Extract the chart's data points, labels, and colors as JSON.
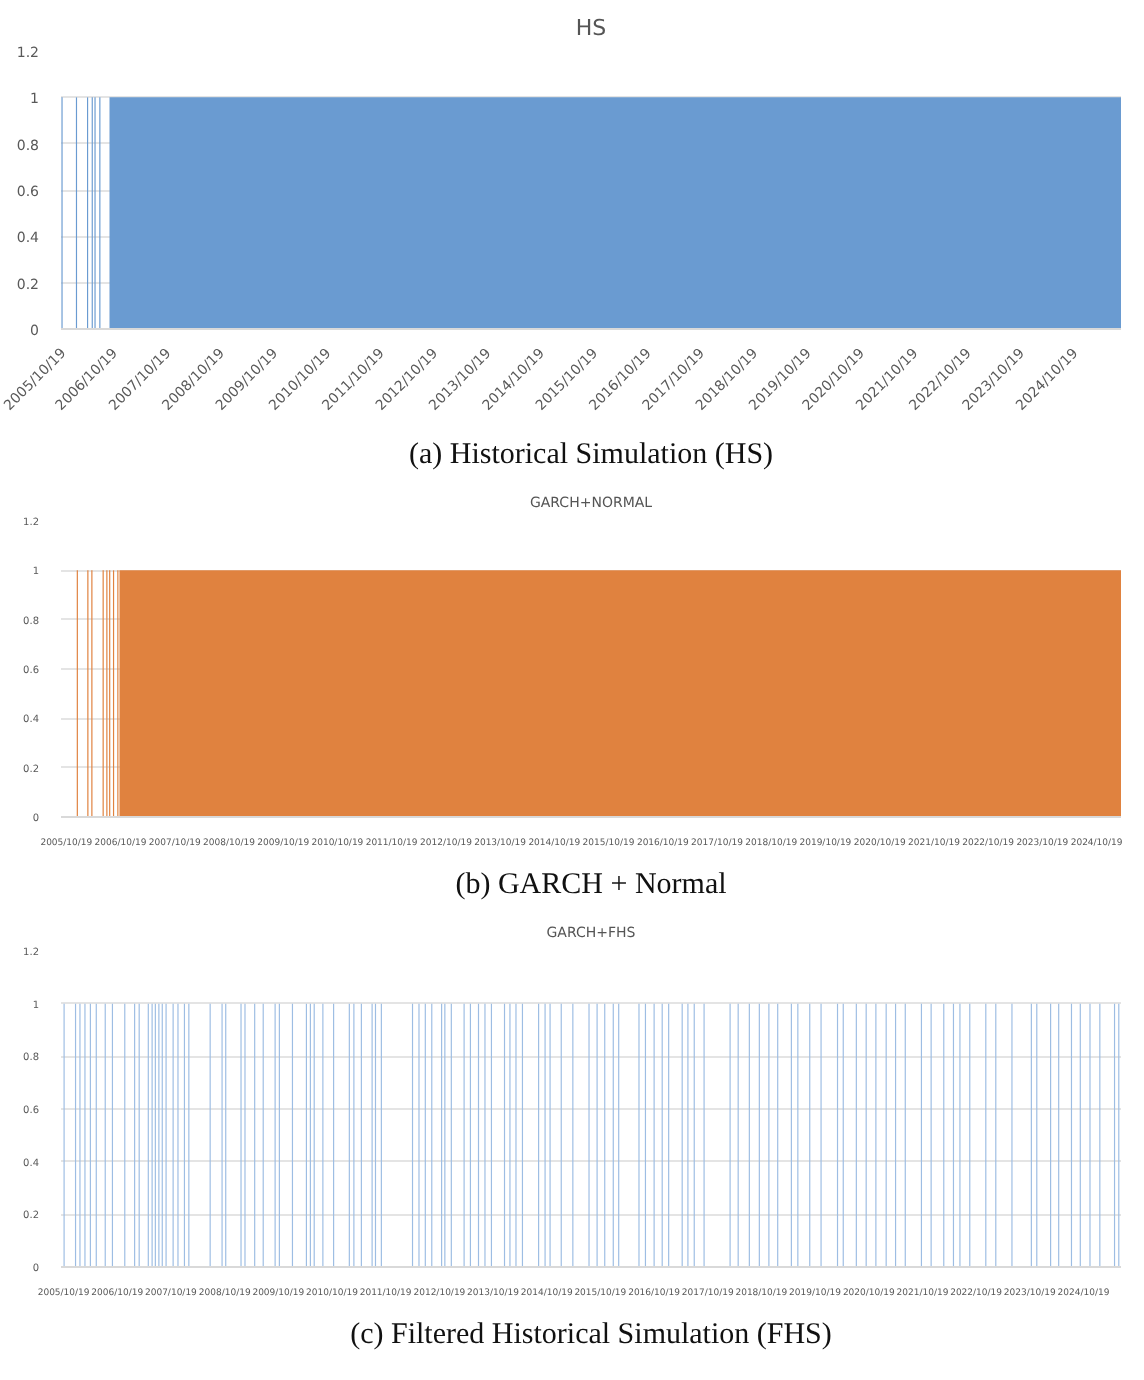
{
  "chart_data": [
    {
      "type": "bar",
      "title": "HS",
      "annotations": [
        "(a) Historical Simulation (HS)"
      ],
      "xlim": [
        "2005-10-12",
        "2025-08-25"
      ],
      "ylim": [
        0,
        1.2
      ],
      "xticks": [
        {
          "value": "2005-10-19",
          "label": "2005/10/19"
        },
        {
          "value": "2006-10-19",
          "label": "2006/10/19"
        },
        {
          "value": "2007-10-19",
          "label": "2007/10/19"
        },
        {
          "value": "2008-10-19",
          "label": "2008/10/19"
        },
        {
          "value": "2009-10-19",
          "label": "2009/10/19"
        },
        {
          "value": "2010-10-19",
          "label": "2010/10/19"
        },
        {
          "value": "2011-10-19",
          "label": "2011/10/19"
        },
        {
          "value": "2012-10-19",
          "label": "2012/10/19"
        },
        {
          "value": "2013-10-19",
          "label": "2013/10/19"
        },
        {
          "value": "2014-10-19",
          "label": "2014/10/19"
        },
        {
          "value": "2015-10-19",
          "label": "2015/10/19"
        },
        {
          "value": "2016-10-19",
          "label": "2016/10/19"
        },
        {
          "value": "2017-10-19",
          "label": "2017/10/19"
        },
        {
          "value": "2018-10-19",
          "label": "2018/10/19"
        },
        {
          "value": "2019-10-19",
          "label": "2019/10/19"
        },
        {
          "value": "2020-10-19",
          "label": "2020/10/19"
        },
        {
          "value": "2021-10-19",
          "label": "2021/10/19"
        },
        {
          "value": "2022-10-19",
          "label": "2022/10/19"
        },
        {
          "value": "2023-10-19",
          "label": "2023/10/19"
        },
        {
          "value": "2024-10-19",
          "label": "2024/10/19"
        }
      ],
      "yticks": [
        0,
        0.2,
        0.4,
        0.6,
        0.8,
        1,
        1.2
      ],
      "grid": "y",
      "series": [
        {
          "color": "#6a9bd1",
          "x": [
            "2005-10-19",
            "2006-01-26",
            "2006-04-12",
            "2006-05-14",
            "2006-06-02",
            "2006-07-05"
          ],
          "values": [
            1,
            1,
            1,
            1,
            1,
            1
          ]
        },
        {
          "type": "area",
          "color": "#6a9bd1",
          "x": [
            "2006-09-09",
            "2025-08-25"
          ],
          "values": [
            1,
            1
          ]
        }
      ]
    },
    {
      "type": "bar",
      "title": "GARCH+NORMAL",
      "annotations": [
        "(b) GARCH + Normal"
      ],
      "xlim": [
        "2005-09-13",
        "2025-04-01"
      ],
      "ylim": [
        0,
        1.2
      ],
      "xticks": [
        {
          "value": "2005-10-19",
          "label": "2005/10/19"
        },
        {
          "value": "2006-10-19",
          "label": "2006/10/19"
        },
        {
          "value": "2007-10-19",
          "label": "2007/10/19"
        },
        {
          "value": "2008-10-19",
          "label": "2008/10/19"
        },
        {
          "value": "2009-10-19",
          "label": "2009/10/19"
        },
        {
          "value": "2010-10-19",
          "label": "2010/10/19"
        },
        {
          "value": "2011-10-19",
          "label": "2011/10/19"
        },
        {
          "value": "2012-10-19",
          "label": "2012/10/19"
        },
        {
          "value": "2013-10-19",
          "label": "2013/10/19"
        },
        {
          "value": "2014-10-19",
          "label": "2014/10/19"
        },
        {
          "value": "2015-10-19",
          "label": "2015/10/19"
        },
        {
          "value": "2016-10-19",
          "label": "2016/10/19"
        },
        {
          "value": "2017-10-19",
          "label": "2017/10/19"
        },
        {
          "value": "2018-10-19",
          "label": "2018/10/19"
        },
        {
          "value": "2019-10-19",
          "label": "2019/10/19"
        },
        {
          "value": "2020-10-19",
          "label": "2020/10/19"
        },
        {
          "value": "2021-10-19",
          "label": "2021/10/19"
        },
        {
          "value": "2022-10-19",
          "label": "2022/10/19"
        },
        {
          "value": "2023-10-19",
          "label": "2023/10/19"
        },
        {
          "value": "2024-10-19",
          "label": "2024/10/19"
        }
      ],
      "yticks": [
        0,
        0.2,
        0.4,
        0.6,
        0.8,
        1,
        1.2
      ],
      "grid": "y",
      "series": [
        {
          "color": "#e0823f",
          "x": [
            "2006-01-01",
            "2006-03-13",
            "2006-04-09",
            "2006-06-24",
            "2006-07-19",
            "2006-08-07",
            "2006-09-02",
            "2006-10-01"
          ],
          "values": [
            1,
            1,
            1,
            1,
            1,
            1,
            1,
            1
          ]
        },
        {
          "type": "area",
          "color": "#e0823f",
          "x": [
            "2006-10-12",
            "2025-04-01"
          ],
          "values": [
            1,
            1
          ]
        }
      ]
    },
    {
      "type": "bar",
      "title": "GARCH+FHS",
      "annotations": [
        "(c) Filtered Historical Simulation (FHS)"
      ],
      "xlim": [
        "2005-10-01",
        "2025-07-01"
      ],
      "ylim": [
        0,
        1.2
      ],
      "xticks": [
        {
          "value": "2005-10-19",
          "label": "2005/10/19"
        },
        {
          "value": "2006-10-19",
          "label": "2006/10/19"
        },
        {
          "value": "2007-10-19",
          "label": "2007/10/19"
        },
        {
          "value": "2008-10-19",
          "label": "2008/10/19"
        },
        {
          "value": "2009-10-19",
          "label": "2009/10/19"
        },
        {
          "value": "2010-10-19",
          "label": "2010/10/19"
        },
        {
          "value": "2011-10-19",
          "label": "2011/10/19"
        },
        {
          "value": "2012-10-19",
          "label": "2012/10/19"
        },
        {
          "value": "2013-10-19",
          "label": "2013/10/19"
        },
        {
          "value": "2014-10-19",
          "label": "2014/10/19"
        },
        {
          "value": "2015-10-19",
          "label": "2015/10/19"
        },
        {
          "value": "2016-10-19",
          "label": "2016/10/19"
        },
        {
          "value": "2017-10-19",
          "label": "2017/10/19"
        },
        {
          "value": "2018-10-19",
          "label": "2018/10/19"
        },
        {
          "value": "2019-10-19",
          "label": "2019/10/19"
        },
        {
          "value": "2020-10-19",
          "label": "2020/10/19"
        },
        {
          "value": "2021-10-19",
          "label": "2021/10/19"
        },
        {
          "value": "2022-10-19",
          "label": "2022/10/19"
        },
        {
          "value": "2023-10-19",
          "label": "2023/10/19"
        },
        {
          "value": "2024-10-19",
          "label": "2024/10/19"
        }
      ],
      "yticks": [
        0,
        0.2,
        0.4,
        0.6,
        0.8,
        1,
        1.2
      ],
      "grid": "y",
      "series": [
        {
          "color": "#9dbde3",
          "x": [
            "2005-10-22",
            "2006-01-08",
            "2006-02-07",
            "2006-03-13",
            "2006-04-19",
            "2006-05-29",
            "2006-07-29",
            "2006-09-16",
            "2006-12-09",
            "2007-02-14",
            "2007-03-17",
            "2007-05-18",
            "2007-06-13",
            "2007-07-05",
            "2007-07-29",
            "2007-08-21",
            "2007-09-16",
            "2007-11-03",
            "2007-12-06",
            "2008-01-19",
            "2008-02-18",
            "2008-07-12",
            "2008-10-01",
            "2008-10-26",
            "2009-02-07",
            "2009-03-06",
            "2009-05-11",
            "2009-07-08",
            "2009-09-27",
            "2009-10-26",
            "2010-01-23",
            "2010-04-28",
            "2010-05-25",
            "2010-06-20",
            "2010-08-18",
            "2010-10-30",
            "2011-02-14",
            "2011-03-17",
            "2011-05-07",
            "2011-07-19",
            "2011-08-11",
            "2011-09-20",
            "2012-04-19",
            "2012-06-02",
            "2012-07-15",
            "2012-08-28",
            "2012-11-03",
            "2012-11-25",
            "2013-01-08",
            "2013-04-05",
            "2013-05-18",
            "2013-07-12",
            "2013-08-25",
            "2013-10-08",
            "2014-01-05",
            "2014-02-11",
            "2014-03-24",
            "2014-05-07",
            "2014-08-25",
            "2014-10-08",
            "2014-11-11",
            "2015-01-26",
            "2015-04-15",
            "2015-08-03",
            "2015-09-27",
            "2015-11-18",
            "2016-01-15",
            "2016-02-21",
            "2016-07-08",
            "2016-08-21",
            "2016-10-19",
            "2016-12-13",
            "2017-01-26",
            "2017-04-28",
            "2017-06-06",
            "2017-07-19",
            "2017-09-24",
            "2018-03-20",
            "2018-05-14",
            "2018-07-29",
            "2018-10-05",
            "2018-12-09",
            "2019-02-07",
            "2019-05-11",
            "2019-06-24",
            "2019-09-13",
            "2019-11-29",
            "2020-03-20",
            "2020-04-28",
            "2020-07-26",
            "2020-10-01",
            "2020-12-06",
            "2021-02-14",
            "2021-04-19",
            "2021-06-24",
            "2021-10-12",
            "2021-12-17",
            "2022-03-13",
            "2022-05-18",
            "2022-07-01",
            "2022-09-06",
            "2022-12-24",
            "2023-03-02",
            "2023-06-20",
            "2023-10-30",
            "2023-12-06",
            "2024-03-09",
            "2024-05-03",
            "2024-07-29",
            "2024-09-27",
            "2024-12-02",
            "2025-02-07",
            "2025-05-18",
            "2025-06-16"
          ],
          "values": [
            1,
            1,
            1,
            1,
            1,
            1,
            1,
            1,
            1,
            1,
            1,
            1,
            1,
            1,
            1,
            1,
            1,
            1,
            1,
            1,
            1,
            1,
            1,
            1,
            1,
            1,
            1,
            1,
            1,
            1,
            1,
            1,
            1,
            1,
            1,
            1,
            1,
            1,
            1,
            1,
            1,
            1,
            1,
            1,
            1,
            1,
            1,
            1,
            1,
            1,
            1,
            1,
            1,
            1,
            1,
            1,
            1,
            1,
            1,
            1,
            1,
            1,
            1,
            1,
            1,
            1,
            1,
            1,
            1,
            1,
            1,
            1,
            1,
            1,
            1,
            1,
            1,
            1,
            1,
            1,
            1,
            1,
            1,
            1,
            1,
            1,
            1,
            1,
            1,
            1,
            1,
            1,
            1,
            1,
            1,
            1,
            1,
            1,
            1,
            1,
            1,
            1,
            1,
            1,
            1,
            1,
            1,
            1,
            1,
            1,
            1,
            1,
            1,
            1
          ]
        }
      ]
    }
  ]
}
